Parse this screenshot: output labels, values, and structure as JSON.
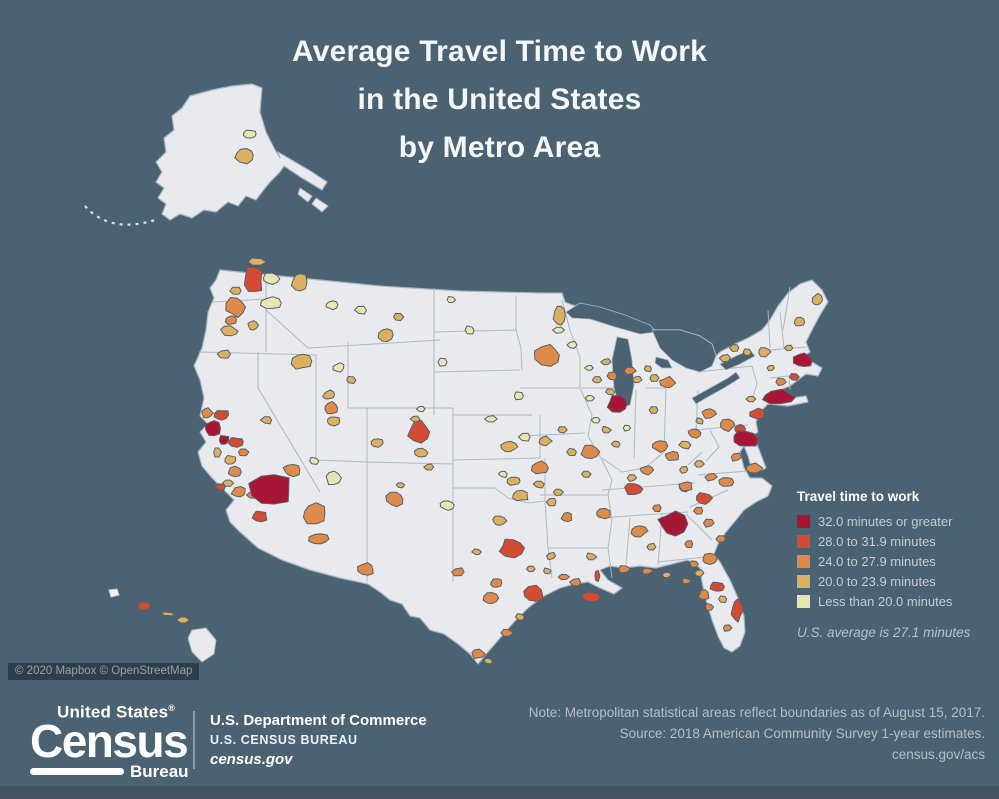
{
  "title": {
    "lines": [
      "Average Travel Time to Work",
      "in the United States",
      "by Metro Area"
    ]
  },
  "legend": {
    "title": "Travel time to work",
    "items": [
      {
        "label": "32.0 minutes or greater",
        "color": "#a81636"
      },
      {
        "label": "28.0 to 31.9 minutes",
        "color": "#d34b33"
      },
      {
        "label": "24.0 to 27.9 minutes",
        "color": "#de8a4b"
      },
      {
        "label": "20.0 to 23.9 minutes",
        "color": "#dcb061"
      },
      {
        "label": "Less than 20.0 minutes",
        "color": "#e7e6b2"
      }
    ],
    "note": "U.S. average is 27.1 minutes"
  },
  "attribution": "© 2020 Mapbox © OpenStreetMap",
  "footer": {
    "logo": {
      "top": "United States",
      "reg": "®",
      "main": "Census",
      "sub": "Bureau"
    },
    "agency": {
      "line1": "U.S. Department of Commerce",
      "line2": "U.S. CENSUS BUREAU",
      "line3": "census.gov"
    },
    "note_lines": [
      "Note: Metropolitan statistical areas reflect boundaries as of August 15, 2017.",
      "Source: 2018 American Community Survey 1-year estimates.",
      "census.gov/acs"
    ]
  },
  "chart_data": {
    "type": "choropleth",
    "title": "Average Travel Time to Work in the United States by Metro Area",
    "unit": "minutes",
    "us_average": 27.1,
    "categories": [
      "32.0 minutes or greater",
      "28.0 to 31.9 minutes",
      "24.0 to 27.9 minutes",
      "20.0 to 23.9 minutes",
      "Less than 20.0 minutes"
    ],
    "colors": [
      "#a81636",
      "#d34b33",
      "#de8a4b",
      "#dcb061",
      "#e7e6b2"
    ],
    "map_base_color": "#e9eaed",
    "border_color": "#a9b6c2",
    "insets": [
      "Alaska",
      "Hawaii"
    ],
    "legend_position": "right",
    "metros": [
      [
        257,
        262,
        18,
        8,
        3
      ],
      [
        253,
        281,
        20,
        26,
        1
      ],
      [
        236,
        291,
        12,
        8,
        3
      ],
      [
        271,
        279,
        18,
        11,
        4
      ],
      [
        299,
        282,
        15,
        19,
        3
      ],
      [
        271,
        303,
        20,
        12,
        4
      ],
      [
        236,
        307,
        19,
        19,
        2
      ],
      [
        231,
        320,
        12,
        9,
        2
      ],
      [
        229,
        331,
        16,
        9,
        3
      ],
      [
        253,
        325,
        10,
        9,
        3
      ],
      [
        224,
        354,
        13,
        8,
        3
      ],
      [
        302,
        361,
        20,
        16,
        3
      ],
      [
        332,
        305,
        11,
        9,
        4
      ],
      [
        361,
        310,
        11,
        8,
        4
      ],
      [
        386,
        335,
        15,
        14,
        3
      ],
      [
        398,
        317,
        10,
        8,
        3
      ],
      [
        339,
        368,
        11,
        9,
        4
      ],
      [
        351,
        380,
        11,
        8,
        3
      ],
      [
        207,
        413,
        11,
        9,
        2
      ],
      [
        221,
        415,
        16,
        11,
        1
      ],
      [
        213,
        428,
        15,
        16,
        0
      ],
      [
        224,
        440,
        11,
        9,
        0
      ],
      [
        236,
        442,
        15,
        9,
        1
      ],
      [
        243,
        452,
        11,
        8,
        2
      ],
      [
        231,
        460,
        12,
        9,
        3
      ],
      [
        234,
        472,
        13,
        10,
        2
      ],
      [
        228,
        483,
        11,
        8,
        3
      ],
      [
        239,
        492,
        15,
        10,
        2
      ],
      [
        217,
        452,
        8,
        11,
        3
      ],
      [
        221,
        487,
        9,
        7,
        1
      ],
      [
        252,
        495,
        10,
        8,
        2
      ],
      [
        271,
        490,
        40,
        32,
        0
      ],
      [
        260,
        516,
        15,
        11,
        1
      ],
      [
        267,
        420,
        11,
        8,
        3
      ],
      [
        292,
        470,
        17,
        13,
        2
      ],
      [
        314,
        461,
        10,
        7,
        4
      ],
      [
        333,
        478,
        15,
        13,
        4
      ],
      [
        329,
        395,
        13,
        9,
        3
      ],
      [
        331,
        408,
        13,
        11,
        2
      ],
      [
        333,
        421,
        13,
        9,
        3
      ],
      [
        377,
        443,
        13,
        9,
        3
      ],
      [
        415,
        419,
        9,
        7,
        3
      ],
      [
        421,
        409,
        9,
        7,
        4
      ],
      [
        419,
        432,
        21,
        20,
        1
      ],
      [
        421,
        453,
        13,
        10,
        3
      ],
      [
        429,
        467,
        9,
        7,
        3
      ],
      [
        314,
        514,
        24,
        20,
        2
      ],
      [
        319,
        539,
        19,
        11,
        2
      ],
      [
        395,
        499,
        17,
        14,
        2
      ],
      [
        400,
        485,
        8,
        6,
        3
      ],
      [
        366,
        569,
        16,
        12,
        2
      ],
      [
        559,
        330,
        11,
        8,
        4
      ],
      [
        560,
        315,
        13,
        22,
        3
      ],
      [
        519,
        396,
        11,
        8,
        4
      ],
      [
        548,
        355,
        24,
        20,
        2
      ],
      [
        509,
        447,
        15,
        10,
        3
      ],
      [
        525,
        437,
        11,
        8,
        4
      ],
      [
        545,
        441,
        12,
        9,
        3
      ],
      [
        491,
        419,
        11,
        8,
        4
      ],
      [
        503,
        474,
        9,
        7,
        4
      ],
      [
        514,
        481,
        13,
        9,
        3
      ],
      [
        540,
        468,
        17,
        13,
        2
      ],
      [
        590,
        452,
        17,
        13,
        2
      ],
      [
        586,
        474,
        10,
        8,
        3
      ],
      [
        572,
        452,
        9,
        7,
        3
      ],
      [
        470,
        330,
        10,
        8,
        4
      ],
      [
        451,
        300,
        9,
        7,
        4
      ],
      [
        443,
        362,
        10,
        8,
        4
      ],
      [
        447,
        505,
        13,
        9,
        4
      ],
      [
        499,
        521,
        13,
        10,
        3
      ],
      [
        521,
        496,
        15,
        10,
        3
      ],
      [
        539,
        484,
        11,
        8,
        3
      ],
      [
        552,
        502,
        10,
        8,
        3
      ],
      [
        567,
        517,
        11,
        9,
        2
      ],
      [
        604,
        514,
        15,
        10,
        2
      ],
      [
        558,
        492,
        10,
        8,
        3
      ],
      [
        512,
        548,
        23,
        17,
        1
      ],
      [
        477,
        552,
        9,
        7,
        3
      ],
      [
        458,
        572,
        13,
        8,
        2
      ],
      [
        496,
        583,
        11,
        9,
        2
      ],
      [
        491,
        598,
        15,
        12,
        2
      ],
      [
        534,
        594,
        21,
        15,
        1
      ],
      [
        520,
        617,
        9,
        7,
        3
      ],
      [
        507,
        633,
        11,
        8,
        2
      ],
      [
        478,
        654,
        13,
        9,
        2
      ],
      [
        488,
        661,
        9,
        6,
        3
      ],
      [
        531,
        569,
        9,
        7,
        3
      ],
      [
        551,
        556,
        9,
        7,
        3
      ],
      [
        576,
        582,
        11,
        8,
        2
      ],
      [
        591,
        597,
        19,
        11,
        1
      ],
      [
        564,
        577,
        11,
        7,
        2
      ],
      [
        547,
        571,
        8,
        6,
        3
      ],
      [
        591,
        557,
        11,
        8,
        3
      ],
      [
        597,
        576,
        5,
        11,
        1
      ],
      [
        624,
        569,
        13,
        8,
        2
      ],
      [
        647,
        571,
        11,
        7,
        2
      ],
      [
        666,
        575,
        9,
        6,
        3
      ],
      [
        686,
        581,
        9,
        6,
        2
      ],
      [
        633,
        489,
        17,
        11,
        1
      ],
      [
        639,
        531,
        15,
        11,
        2
      ],
      [
        651,
        547,
        9,
        7,
        3
      ],
      [
        673,
        524,
        28,
        24,
        0
      ],
      [
        657,
        508,
        9,
        7,
        2
      ],
      [
        685,
        487,
        13,
        9,
        2
      ],
      [
        699,
        511,
        9,
        7,
        2
      ],
      [
        709,
        523,
        11,
        8,
        2
      ],
      [
        721,
        539,
        11,
        8,
        2
      ],
      [
        689,
        544,
        9,
        7,
        2
      ],
      [
        709,
        559,
        15,
        10,
        2
      ],
      [
        699,
        573,
        9,
        7,
        3
      ],
      [
        717,
        587,
        13,
        10,
        1
      ],
      [
        704,
        595,
        11,
        9,
        2
      ],
      [
        709,
        607,
        9,
        7,
        2
      ],
      [
        723,
        599,
        9,
        7,
        3
      ],
      [
        737,
        610,
        11,
        22,
        1
      ],
      [
        727,
        628,
        9,
        7,
        2
      ],
      [
        694,
        564,
        8,
        6,
        2
      ],
      [
        618,
        404,
        21,
        17,
        0
      ],
      [
        612,
        376,
        10,
        8,
        2
      ],
      [
        597,
        380,
        9,
        7,
        3
      ],
      [
        589,
        368,
        8,
        6,
        4
      ],
      [
        572,
        345,
        9,
        7,
        4
      ],
      [
        606,
        362,
        9,
        7,
        3
      ],
      [
        606,
        430,
        9,
        7,
        3
      ],
      [
        596,
        420,
        8,
        6,
        4
      ],
      [
        616,
        444,
        9,
        7,
        3
      ],
      [
        627,
        428,
        8,
        6,
        4
      ],
      [
        654,
        410,
        9,
        7,
        3
      ],
      [
        659,
        446,
        15,
        11,
        2
      ],
      [
        647,
        470,
        13,
        9,
        2
      ],
      [
        632,
        478,
        9,
        7,
        3
      ],
      [
        672,
        456,
        13,
        10,
        2
      ],
      [
        685,
        445,
        11,
        8,
        3
      ],
      [
        695,
        433,
        13,
        9,
        2
      ],
      [
        709,
        414,
        13,
        9,
        2
      ],
      [
        700,
        421,
        8,
        6,
        3
      ],
      [
        668,
        383,
        15,
        11,
        2
      ],
      [
        654,
        378,
        9,
        7,
        3
      ],
      [
        648,
        369,
        8,
        6,
        3
      ],
      [
        637,
        380,
        9,
        7,
        3
      ],
      [
        630,
        371,
        11,
        8,
        2
      ],
      [
        610,
        392,
        9,
        6,
        3
      ],
      [
        590,
        398,
        8,
        6,
        4
      ],
      [
        562,
        430,
        9,
        7,
        3
      ],
      [
        686,
        486,
        13,
        9,
        2
      ],
      [
        727,
        425,
        15,
        11,
        2
      ],
      [
        699,
        464,
        9,
        7,
        3
      ],
      [
        684,
        470,
        9,
        7,
        3
      ],
      [
        736,
        457,
        11,
        8,
        2
      ],
      [
        754,
        468,
        15,
        9,
        2
      ],
      [
        726,
        482,
        13,
        9,
        2
      ],
      [
        711,
        477,
        11,
        8,
        2
      ],
      [
        704,
        498,
        15,
        11,
        1
      ],
      [
        740,
        429,
        11,
        9,
        1
      ],
      [
        745,
        439,
        24,
        18,
        0
      ],
      [
        757,
        414,
        15,
        11,
        1
      ],
      [
        769,
        398,
        9,
        7,
        2
      ],
      [
        751,
        399,
        9,
        7,
        3
      ],
      [
        779,
        397,
        32,
        14,
        0
      ],
      [
        781,
        382,
        11,
        8,
        2
      ],
      [
        794,
        377,
        11,
        8,
        1
      ],
      [
        803,
        360,
        17,
        15,
        0
      ],
      [
        789,
        348,
        9,
        7,
        3
      ],
      [
        799,
        322,
        11,
        9,
        3
      ],
      [
        817,
        300,
        10,
        12,
        3
      ],
      [
        764,
        352,
        13,
        9,
        3
      ],
      [
        747,
        352,
        9,
        7,
        3
      ],
      [
        735,
        348,
        9,
        7,
        3
      ],
      [
        725,
        358,
        11,
        8,
        3
      ],
      [
        771,
        368,
        8,
        6,
        3
      ],
      [
        250,
        134,
        15,
        9,
        4
      ],
      [
        245,
        155,
        20,
        15,
        3
      ],
      [
        144,
        606,
        12,
        9,
        1
      ],
      [
        168,
        614,
        13,
        4,
        3
      ],
      [
        183,
        620,
        12,
        8,
        3
      ]
    ]
  }
}
